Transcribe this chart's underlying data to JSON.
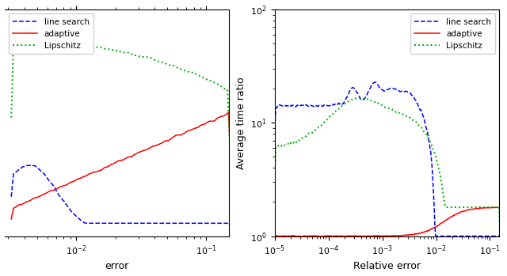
{
  "right_ylabel": "Average time ratio",
  "right_xlabel": "Relative error",
  "left_xlabel": "error",
  "legend_labels": [
    "line search",
    "adaptive",
    "Lipschitz"
  ],
  "blue_color": "#0000ff",
  "red_color": "#ff0000",
  "green_color": "#00aa00",
  "xlim_right": [
    1e-05,
    0.15
  ],
  "ylim_right": [
    1.0,
    100
  ],
  "xlim_left": [
    0.0028,
    0.15
  ],
  "figsize": [
    6.4,
    3.49
  ],
  "dpi": 100
}
